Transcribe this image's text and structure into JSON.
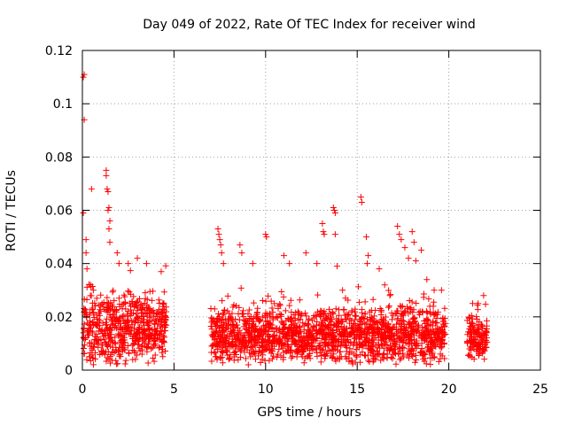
{
  "chart_data": {
    "type": "scatter",
    "title": "Day 049 of 2022, Rate Of TEC Index for receiver wind",
    "xlabel": "GPS time / hours",
    "ylabel": "ROTI / TECUs",
    "xlim": [
      0,
      25
    ],
    "ylim": [
      0,
      0.12
    ],
    "x_ticks": [
      "0",
      "5",
      "10",
      "15",
      "20",
      "25"
    ],
    "y_ticks": [
      "0",
      "0.02",
      "0.04",
      "0.06",
      "0.08",
      "0.1",
      "0.12"
    ],
    "grid": true,
    "marker": "+",
    "color": "#ff0000",
    "series": [
      {
        "points": [
          [
            0.05,
            0.11
          ],
          [
            0.1,
            0.111
          ],
          [
            0.1,
            0.094
          ],
          [
            0.05,
            0.059
          ],
          [
            0.2,
            0.049
          ],
          [
            0.2,
            0.044
          ],
          [
            0.25,
            0.038
          ],
          [
            0.5,
            0.068
          ],
          [
            0.6,
            0.03
          ],
          [
            0.7,
            0.024
          ],
          [
            1.3,
            0.075
          ],
          [
            1.3,
            0.073
          ],
          [
            1.35,
            0.068
          ],
          [
            1.4,
            0.067
          ],
          [
            1.45,
            0.061
          ],
          [
            1.4,
            0.06
          ],
          [
            1.5,
            0.056
          ],
          [
            1.45,
            0.053
          ],
          [
            1.5,
            0.048
          ],
          [
            1.9,
            0.044
          ],
          [
            2.0,
            0.04
          ],
          [
            2.5,
            0.04
          ],
          [
            3.0,
            0.042
          ],
          [
            3.5,
            0.04
          ],
          [
            4.3,
            0.037
          ],
          [
            7.4,
            0.053
          ],
          [
            7.45,
            0.051
          ],
          [
            7.5,
            0.049
          ],
          [
            7.55,
            0.047
          ],
          [
            7.6,
            0.044
          ],
          [
            7.7,
            0.04
          ],
          [
            8.6,
            0.047
          ],
          [
            8.7,
            0.044
          ],
          [
            9.3,
            0.04
          ],
          [
            10.0,
            0.051
          ],
          [
            10.05,
            0.05
          ],
          [
            11.0,
            0.043
          ],
          [
            11.3,
            0.04
          ],
          [
            12.2,
            0.044
          ],
          [
            12.8,
            0.04
          ],
          [
            13.1,
            0.055
          ],
          [
            13.15,
            0.052
          ],
          [
            13.2,
            0.051
          ],
          [
            13.7,
            0.061
          ],
          [
            13.75,
            0.06
          ],
          [
            13.8,
            0.059
          ],
          [
            13.8,
            0.051
          ],
          [
            13.9,
            0.039
          ],
          [
            14.2,
            0.03
          ],
          [
            15.2,
            0.065
          ],
          [
            15.25,
            0.063
          ],
          [
            15.5,
            0.05
          ],
          [
            15.6,
            0.043
          ],
          [
            15.55,
            0.04
          ],
          [
            16.2,
            0.038
          ],
          [
            16.5,
            0.032
          ],
          [
            17.2,
            0.054
          ],
          [
            17.3,
            0.051
          ],
          [
            17.4,
            0.049
          ],
          [
            17.6,
            0.046
          ],
          [
            17.8,
            0.042
          ],
          [
            18.0,
            0.052
          ],
          [
            18.1,
            0.048
          ],
          [
            18.2,
            0.041
          ],
          [
            18.5,
            0.045
          ],
          [
            18.8,
            0.034
          ],
          [
            19.2,
            0.03
          ],
          [
            19.6,
            0.03
          ],
          [
            21.3,
            0.025
          ],
          [
            21.6,
            0.025
          ],
          [
            21.9,
            0.028
          ]
        ],
        "segments": [
          {
            "x": [
              0.05,
              4.6
            ],
            "base": [
              0.007,
              0.021
            ],
            "amp": 0.015
          },
          {
            "x": [
              7.0,
              19.8
            ],
            "base": [
              0.007,
              0.017
            ],
            "amp": 0.012
          },
          {
            "x": [
              21.0,
              22.1
            ],
            "base": [
              0.006,
              0.016
            ],
            "amp": 0.008
          }
        ]
      }
    ]
  }
}
